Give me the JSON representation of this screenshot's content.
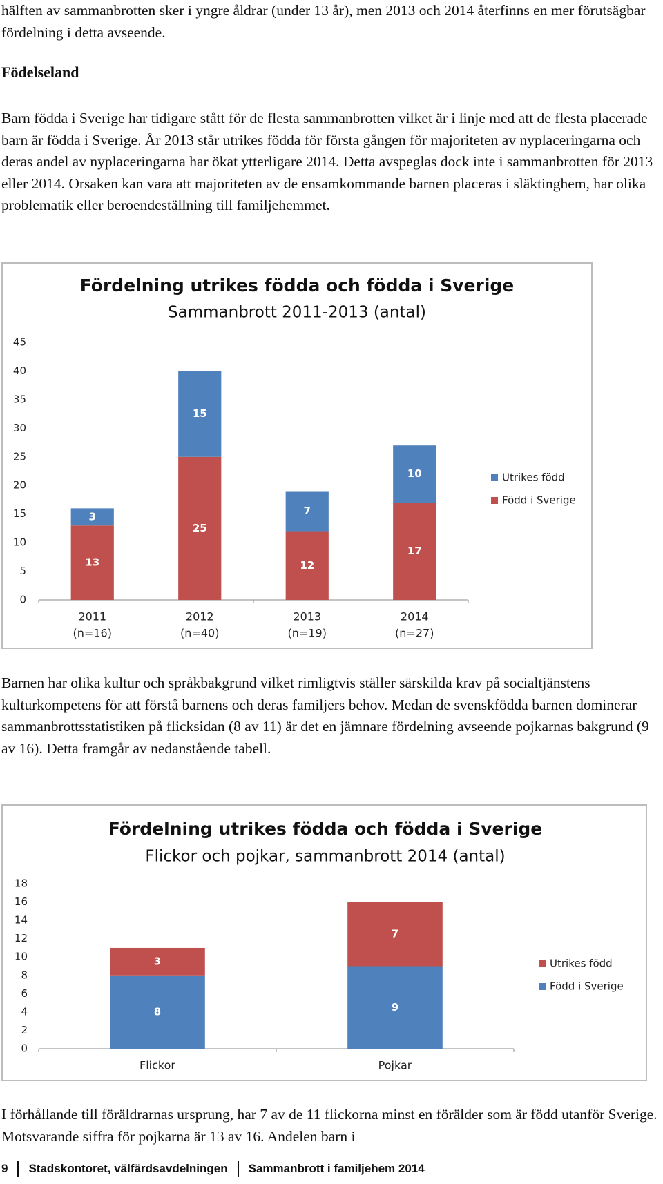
{
  "paragraphs": [
    "hälften av sammanbrotten sker i yngre åldrar (under 13 år), men 2013 och 2014 återfinns en mer förutsägbar fördelning i detta avseende.",
    "Barn födda i Sverige har tidigare stått för de flesta sammanbrotten vilket är i linje med att de flesta placerade barn är födda i Sverige. År 2013 står utrikes födda för första gången för majoriteten av nyplaceringarna och deras andel av nyplaceringarna har ökat ytterligare 2014. Detta avspeglas dock inte i sammanbrotten för 2013 eller 2014. Orsaken kan vara att majoriteten av de ensamkommande barnen placeras i släktinghem, har olika problematik eller beroendeställning till familjehemmet.",
    "Barnen har olika kultur och språkbakgrund vilket rimligtvis ställer särskilda krav på socialtjänstens kulturkompetens för att förstå barnens och deras familjers behov. Medan de svenskfödda barnen dominerar sammanbrottsstatistiken på flicksidan (8 av 11) är det en jämnare fördelning avseende pojkarnas bakgrund (9 av 16). Detta framgår av nedanstående tabell.",
    "I förhållande till föräldrarnas ursprung, har 7 av de 11 flickorna minst en förälder som är född utanför Sverige. Motsvarande siffra för pojkarna är 13 av 16. Andelen barn i"
  ],
  "heading": "Födelseland",
  "chart_data": [
    {
      "type": "stacked_bar",
      "title": "Fördelning utrikes födda och födda i Sverige",
      "subtitle": "Sammanbrott 2011-2013 (antal)",
      "categories": [
        "2011",
        "2012",
        "2013",
        "2014"
      ],
      "category_sublabels": [
        "(n=16)",
        "(n=40)",
        "(n=19)",
        "(n=27)"
      ],
      "series": [
        {
          "name": "Född i Sverige",
          "color": "#c0504d",
          "values": [
            13,
            25,
            12,
            17
          ]
        },
        {
          "name": "Utrikes född",
          "color": "#4f81bd",
          "values": [
            3,
            15,
            7,
            10
          ]
        }
      ],
      "ylim": [
        0,
        45
      ],
      "yticks": [
        0,
        5,
        10,
        15,
        20,
        25,
        30,
        35,
        40,
        45
      ],
      "grid": false,
      "legend": "right"
    },
    {
      "type": "stacked_bar",
      "title": "Fördelning utrikes födda och födda i Sverige",
      "subtitle": "Flickor och pojkar, sammanbrott 2014 (antal)",
      "categories": [
        "Flickor",
        "Pojkar"
      ],
      "series": [
        {
          "name": "Född i Sverige",
          "color": "#4f81bd",
          "values": [
            8,
            9
          ]
        },
        {
          "name": "Utrikes född",
          "color": "#c0504d",
          "values": [
            3,
            7
          ]
        }
      ],
      "ylim": [
        0,
        18
      ],
      "yticks": [
        0,
        2,
        4,
        6,
        8,
        10,
        12,
        14,
        16,
        18
      ],
      "grid": false,
      "legend": "right"
    }
  ],
  "footer": {
    "page": "9",
    "department": "Stadskontoret, välfärdsavdelningen",
    "report": "Sammanbrott i familjehem 2014"
  }
}
